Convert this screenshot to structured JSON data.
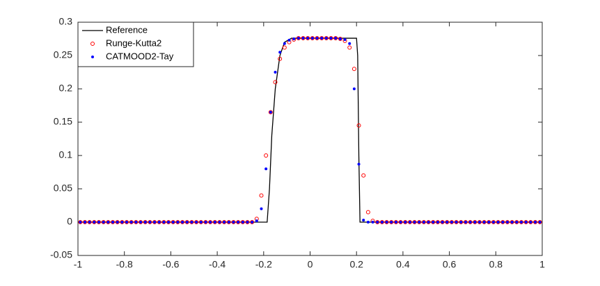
{
  "chart_data": {
    "type": "line",
    "xlim": [
      -1,
      1
    ],
    "ylim": [
      -0.05,
      0.3
    ],
    "xticks": [
      -1,
      -0.8,
      -0.6,
      -0.4,
      -0.2,
      0,
      0.2,
      0.4,
      0.6,
      0.8,
      1
    ],
    "yticks": [
      -0.05,
      0,
      0.05,
      0.1,
      0.15,
      0.2,
      0.25,
      0.3
    ],
    "grid": false,
    "legend": "top-left",
    "series": [
      {
        "name": "Reference",
        "color": "#000000",
        "style": "line",
        "x": [
          -1,
          -0.185,
          -0.175,
          -0.165,
          -0.15,
          -0.13,
          -0.11,
          -0.08,
          0.2,
          0.205,
          0.21,
          0.215,
          1
        ],
        "values": [
          0,
          0,
          0.05,
          0.13,
          0.2,
          0.25,
          0.27,
          0.276,
          0.276,
          0.25,
          0.1,
          0,
          0
        ]
      },
      {
        "name": "Runge-Kutta2",
        "color": "#ff0000",
        "style": "circle",
        "x": [
          -0.99,
          -0.97,
          -0.95,
          -0.93,
          -0.91,
          -0.89,
          -0.87,
          -0.85,
          -0.83,
          -0.81,
          -0.79,
          -0.77,
          -0.75,
          -0.73,
          -0.71,
          -0.69,
          -0.67,
          -0.65,
          -0.63,
          -0.61,
          -0.59,
          -0.57,
          -0.55,
          -0.53,
          -0.51,
          -0.49,
          -0.47,
          -0.45,
          -0.43,
          -0.41,
          -0.39,
          -0.37,
          -0.35,
          -0.33,
          -0.31,
          -0.29,
          -0.27,
          -0.25,
          -0.23,
          -0.21,
          -0.19,
          -0.17,
          -0.15,
          -0.13,
          -0.11,
          -0.09,
          -0.07,
          -0.05,
          -0.03,
          -0.01,
          0.01,
          0.03,
          0.05,
          0.07,
          0.09,
          0.11,
          0.13,
          0.15,
          0.17,
          0.19,
          0.21,
          0.23,
          0.25,
          0.27,
          0.29,
          0.31,
          0.33,
          0.35,
          0.37,
          0.39,
          0.41,
          0.43,
          0.45,
          0.47,
          0.49,
          0.51,
          0.53,
          0.55,
          0.57,
          0.59,
          0.61,
          0.63,
          0.65,
          0.67,
          0.69,
          0.71,
          0.73,
          0.75,
          0.77,
          0.79,
          0.81,
          0.83,
          0.85,
          0.87,
          0.89,
          0.91,
          0.93,
          0.95,
          0.97,
          0.99
        ],
        "values": [
          0,
          0,
          0,
          0,
          0,
          0,
          0,
          0,
          0,
          0,
          0,
          0,
          0,
          0,
          0,
          0,
          0,
          0,
          0,
          0,
          0,
          0,
          0,
          0,
          0,
          0,
          0,
          0,
          0,
          0,
          0,
          0,
          0,
          0,
          0,
          0,
          0,
          0,
          0.005,
          0.04,
          0.1,
          0.165,
          0.21,
          0.245,
          0.262,
          0.27,
          0.274,
          0.276,
          0.276,
          0.276,
          0.276,
          0.276,
          0.276,
          0.276,
          0.276,
          0.276,
          0.275,
          0.272,
          0.262,
          0.23,
          0.145,
          0.07,
          0.015,
          0.002,
          0,
          0,
          0,
          0,
          0,
          0,
          0,
          0,
          0,
          0,
          0,
          0,
          0,
          0,
          0,
          0,
          0,
          0,
          0,
          0,
          0,
          0,
          0,
          0,
          0,
          0,
          0,
          0,
          0,
          0,
          0,
          0,
          0,
          0,
          0,
          0
        ]
      },
      {
        "name": "CATMOOD2-Tay",
        "color": "#0000ff",
        "style": "dot",
        "x": [
          -0.99,
          -0.97,
          -0.95,
          -0.93,
          -0.91,
          -0.89,
          -0.87,
          -0.85,
          -0.83,
          -0.81,
          -0.79,
          -0.77,
          -0.75,
          -0.73,
          -0.71,
          -0.69,
          -0.67,
          -0.65,
          -0.63,
          -0.61,
          -0.59,
          -0.57,
          -0.55,
          -0.53,
          -0.51,
          -0.49,
          -0.47,
          -0.45,
          -0.43,
          -0.41,
          -0.39,
          -0.37,
          -0.35,
          -0.33,
          -0.31,
          -0.29,
          -0.27,
          -0.25,
          -0.23,
          -0.21,
          -0.19,
          -0.17,
          -0.15,
          -0.13,
          -0.11,
          -0.09,
          -0.07,
          -0.05,
          -0.03,
          -0.01,
          0.01,
          0.03,
          0.05,
          0.07,
          0.09,
          0.11,
          0.13,
          0.15,
          0.17,
          0.19,
          0.21,
          0.23,
          0.25,
          0.27,
          0.29,
          0.31,
          0.33,
          0.35,
          0.37,
          0.39,
          0.41,
          0.43,
          0.45,
          0.47,
          0.49,
          0.51,
          0.53,
          0.55,
          0.57,
          0.59,
          0.61,
          0.63,
          0.65,
          0.67,
          0.69,
          0.71,
          0.73,
          0.75,
          0.77,
          0.79,
          0.81,
          0.83,
          0.85,
          0.87,
          0.89,
          0.91,
          0.93,
          0.95,
          0.97,
          0.99
        ],
        "values": [
          0,
          0,
          0,
          0,
          0,
          0,
          0,
          0,
          0,
          0,
          0,
          0,
          0,
          0,
          0,
          0,
          0,
          0,
          0,
          0,
          0,
          0,
          0,
          0,
          0,
          0,
          0,
          0,
          0,
          0,
          0,
          0,
          0,
          0,
          0,
          0,
          0,
          0,
          0.002,
          0.02,
          0.08,
          0.165,
          0.225,
          0.255,
          0.268,
          0.273,
          0.275,
          0.276,
          0.276,
          0.276,
          0.276,
          0.276,
          0.276,
          0.276,
          0.276,
          0.276,
          0.275,
          0.274,
          0.268,
          0.2,
          0.087,
          0.003,
          0,
          0,
          0,
          0,
          0,
          0,
          0,
          0,
          0,
          0,
          0,
          0,
          0,
          0,
          0,
          0,
          0,
          0,
          0,
          0,
          0,
          0,
          0,
          0,
          0,
          0,
          0,
          0,
          0,
          0,
          0,
          0,
          0,
          0,
          0,
          0,
          0,
          0
        ]
      }
    ]
  }
}
